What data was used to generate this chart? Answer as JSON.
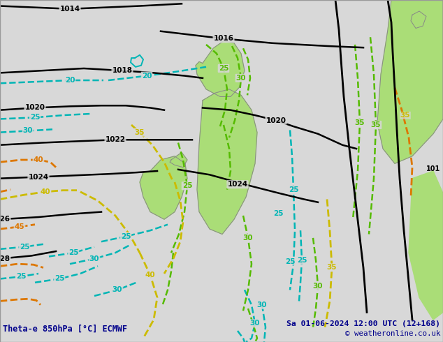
{
  "title_left": "Theta-e 850hPa [°C] ECMWF",
  "title_right": "Sa 01-06-2024 12:00 UTC (12+168)",
  "copyright": "© weatheronline.co.uk",
  "bg_color": "#d8d8d8",
  "fig_width": 6.34,
  "fig_height": 4.9,
  "dpi": 100,
  "text_color": "#00008B",
  "black": "#000000",
  "cyan": "#00b5b5",
  "green_c": "#55bb00",
  "yellow_c": "#ccbb00",
  "orange_c": "#dd7700",
  "land_gray": "#c0c0c0",
  "green_fill": "#aadd77"
}
